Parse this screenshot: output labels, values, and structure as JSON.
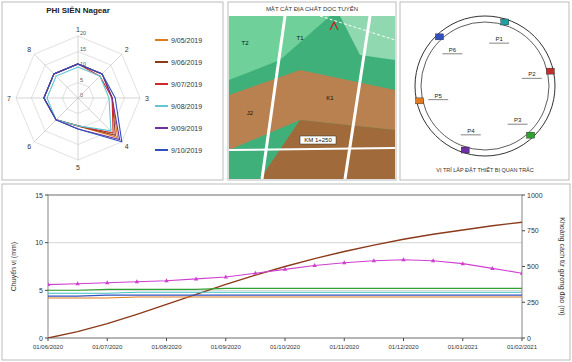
{
  "chart_data": [
    {
      "type": "radar",
      "title": "PHI SIÊN Nagear",
      "categories": [
        "1",
        "2",
        "3",
        "4",
        "5",
        "6",
        "7",
        "8"
      ],
      "ylim": [
        0,
        20
      ],
      "yticks": [
        0,
        5,
        10,
        15,
        20
      ],
      "grid": true,
      "legend": "right",
      "series": [
        {
          "name": "9/05/2019",
          "color": "#e07b20",
          "values": [
            11,
            11,
            11,
            18,
            9,
            10,
            11,
            11
          ]
        },
        {
          "name": "9/06/2019",
          "color": "#8b3a1a",
          "values": [
            11,
            11,
            11,
            17,
            9,
            10,
            11,
            11
          ]
        },
        {
          "name": "9/07/2019",
          "color": "#d02828",
          "values": [
            11,
            10,
            11,
            16,
            9,
            10,
            11,
            11
          ]
        },
        {
          "name": "9/08/2019",
          "color": "#5ec8d8",
          "values": [
            10,
            10,
            10,
            15,
            9,
            10,
            10,
            10
          ]
        },
        {
          "name": "9/09/2019",
          "color": "#7030a0",
          "values": [
            11,
            11,
            11,
            19,
            10,
            10,
            11,
            11
          ]
        },
        {
          "name": "9/10/2019",
          "color": "#3050c0",
          "values": [
            11,
            11,
            12,
            20,
            10,
            10,
            11,
            11
          ]
        }
      ]
    },
    {
      "type": "line",
      "y_label": "Chuyển vị (mm)",
      "y2_label": "Khoảng cách từ gương đào (m)",
      "categories": [
        "01/06/2020",
        null,
        "01/07/2020",
        null,
        "01/08/2020",
        null,
        "01/09/2020",
        null,
        "01/10/2020",
        null,
        "01/11/2020",
        null,
        "01/12/2020",
        null,
        "01/01/2021",
        null,
        "01/02/2021"
      ],
      "ylim": [
        0,
        15
      ],
      "yticks": [
        0,
        5,
        10,
        15
      ],
      "y2lim": [
        0,
        1000
      ],
      "y2ticks": [
        0,
        250,
        500,
        750,
        1000
      ],
      "grid": true,
      "series": [
        {
          "color": "#8b3a1a",
          "axis": "y2",
          "values": [
            0,
            45,
            100,
            165,
            235,
            305,
            375,
            440,
            500,
            555,
            605,
            650,
            690,
            725,
            755,
            785,
            810
          ]
        },
        {
          "color": "#d040d0",
          "marker": "triangle",
          "values": [
            5.6,
            5.7,
            5.8,
            5.9,
            6.0,
            6.2,
            6.4,
            6.8,
            7.2,
            7.6,
            7.9,
            8.1,
            8.2,
            8.1,
            7.8,
            7.3,
            6.8
          ]
        },
        {
          "color": "#30a030",
          "values": [
            5.0,
            5.0,
            5.1,
            5.1,
            5.1,
            5.1,
            5.2,
            5.2,
            5.2,
            5.2,
            5.2,
            5.2,
            5.2,
            5.2,
            5.2,
            5.2,
            5.2
          ]
        },
        {
          "color": "#40c0c0",
          "values": [
            4.7,
            4.7,
            4.7,
            4.8,
            4.8,
            4.8,
            4.8,
            4.8,
            4.8,
            4.8,
            4.8,
            4.8,
            4.8,
            4.8,
            4.8,
            4.8,
            4.8
          ]
        },
        {
          "color": "#3050c0",
          "values": [
            4.4,
            4.4,
            4.5,
            4.5,
            4.5,
            4.5,
            4.5,
            4.5,
            4.5,
            4.5,
            4.5,
            4.5,
            4.5,
            4.5,
            4.5,
            4.5,
            4.5
          ]
        },
        {
          "color": "#e07b20",
          "values": [
            4.2,
            4.2,
            4.2,
            4.3,
            4.3,
            4.3,
            4.3,
            4.3,
            4.3,
            4.3,
            4.3,
            4.3,
            4.3,
            4.3,
            4.3,
            4.3,
            4.3
          ]
        }
      ]
    }
  ],
  "map": {
    "title": "MẶT CẮT ĐỊA CHẤT DỌC TUYẾN",
    "labels": [
      "T2",
      "T1",
      "J2",
      "K1",
      "KM 1+250"
    ]
  },
  "ring": {
    "caption": "VỊ TRÍ LẮP ĐẶT THIẾT BỊ QUAN TRẮC",
    "labels": [
      "P1",
      "P2",
      "P3",
      "P4",
      "P5",
      "P6"
    ]
  }
}
